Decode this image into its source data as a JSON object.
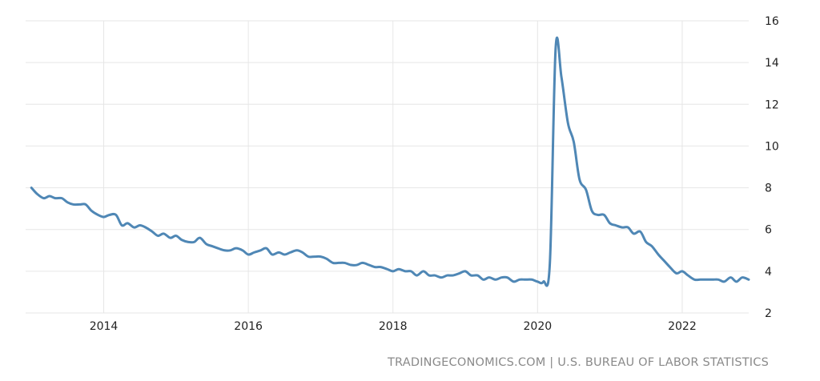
{
  "chart_data": {
    "type": "line",
    "title": "",
    "xlabel": "",
    "ylabel": "",
    "xlim": [
      2012.92,
      2022.92
    ],
    "ylim": [
      2,
      16
    ],
    "x_ticks": [
      2014,
      2016,
      2018,
      2020,
      2022
    ],
    "x_tick_labels": [
      "2014",
      "2016",
      "2018",
      "2020",
      "2022"
    ],
    "y_ticks": [
      2,
      4,
      6,
      8,
      10,
      12,
      14,
      16
    ],
    "y_tick_labels": [
      "2",
      "4",
      "6",
      "8",
      "10",
      "12",
      "14",
      "16"
    ],
    "grid": true,
    "legend": "none",
    "line_color": "#4f87b5",
    "series": [
      {
        "x": [
          2013.0,
          2013.08,
          2013.17,
          2013.25,
          2013.33,
          2013.42,
          2013.5,
          2013.58,
          2013.67,
          2013.75,
          2013.83,
          2013.92,
          2014.0,
          2014.08,
          2014.17,
          2014.25,
          2014.33,
          2014.42,
          2014.5,
          2014.58,
          2014.67,
          2014.75,
          2014.83,
          2014.92,
          2015.0,
          2015.08,
          2015.17,
          2015.25,
          2015.33,
          2015.42,
          2015.5,
          2015.58,
          2015.67,
          2015.75,
          2015.83,
          2015.92,
          2016.0,
          2016.08,
          2016.17,
          2016.25,
          2016.33,
          2016.42,
          2016.5,
          2016.58,
          2016.67,
          2016.75,
          2016.83,
          2016.92,
          2017.0,
          2017.08,
          2017.17,
          2017.25,
          2017.33,
          2017.42,
          2017.5,
          2017.58,
          2017.67,
          2017.75,
          2017.83,
          2017.92,
          2018.0,
          2018.08,
          2018.17,
          2018.25,
          2018.33,
          2018.42,
          2018.5,
          2018.58,
          2018.67,
          2018.75,
          2018.83,
          2018.92,
          2019.0,
          2019.08,
          2019.17,
          2019.25,
          2019.33,
          2019.42,
          2019.5,
          2019.58,
          2019.67,
          2019.75,
          2019.83,
          2019.92,
          2020.0,
          2020.08,
          2020.17,
          2020.25,
          2020.33,
          2020.42,
          2020.5,
          2020.58,
          2020.67,
          2020.75,
          2020.83,
          2020.92,
          2021.0,
          2021.08,
          2021.17,
          2021.25,
          2021.33,
          2021.42,
          2021.5,
          2021.58,
          2021.67,
          2021.75,
          2021.83,
          2021.92,
          2022.0,
          2022.08,
          2022.17,
          2022.25,
          2022.33,
          2022.42,
          2022.5,
          2022.58,
          2022.67,
          2022.75,
          2022.83,
          2022.92
        ],
        "y": [
          8.0,
          7.7,
          7.5,
          7.6,
          7.5,
          7.5,
          7.3,
          7.2,
          7.2,
          7.2,
          6.9,
          6.7,
          6.6,
          6.7,
          6.7,
          6.2,
          6.3,
          6.1,
          6.2,
          6.1,
          5.9,
          5.7,
          5.8,
          5.6,
          5.7,
          5.5,
          5.4,
          5.4,
          5.6,
          5.3,
          5.2,
          5.1,
          5.0,
          5.0,
          5.1,
          5.0,
          4.8,
          4.9,
          5.0,
          5.1,
          4.8,
          4.9,
          4.8,
          4.9,
          5.0,
          4.9,
          4.7,
          4.7,
          4.7,
          4.6,
          4.4,
          4.4,
          4.4,
          4.3,
          4.3,
          4.4,
          4.3,
          4.2,
          4.2,
          4.1,
          4.0,
          4.1,
          4.0,
          4.0,
          3.8,
          4.0,
          3.8,
          3.8,
          3.7,
          3.8,
          3.8,
          3.9,
          4.0,
          3.8,
          3.8,
          3.6,
          3.7,
          3.6,
          3.7,
          3.7,
          3.5,
          3.6,
          3.6,
          3.6,
          3.5,
          3.5,
          4.4,
          14.7,
          13.3,
          11.1,
          10.2,
          8.4,
          7.9,
          6.9,
          6.7,
          6.7,
          6.3,
          6.2,
          6.1,
          6.1,
          5.8,
          5.9,
          5.4,
          5.2,
          4.8,
          4.5,
          4.2,
          3.9,
          4.0,
          3.8,
          3.6,
          3.6,
          3.6,
          3.6,
          3.6,
          3.5,
          3.7,
          3.5,
          3.7,
          3.6
        ]
      }
    ],
    "source": "TRADINGECONOMICS.COM | U.S. BUREAU OF LABOR STATISTICS"
  }
}
